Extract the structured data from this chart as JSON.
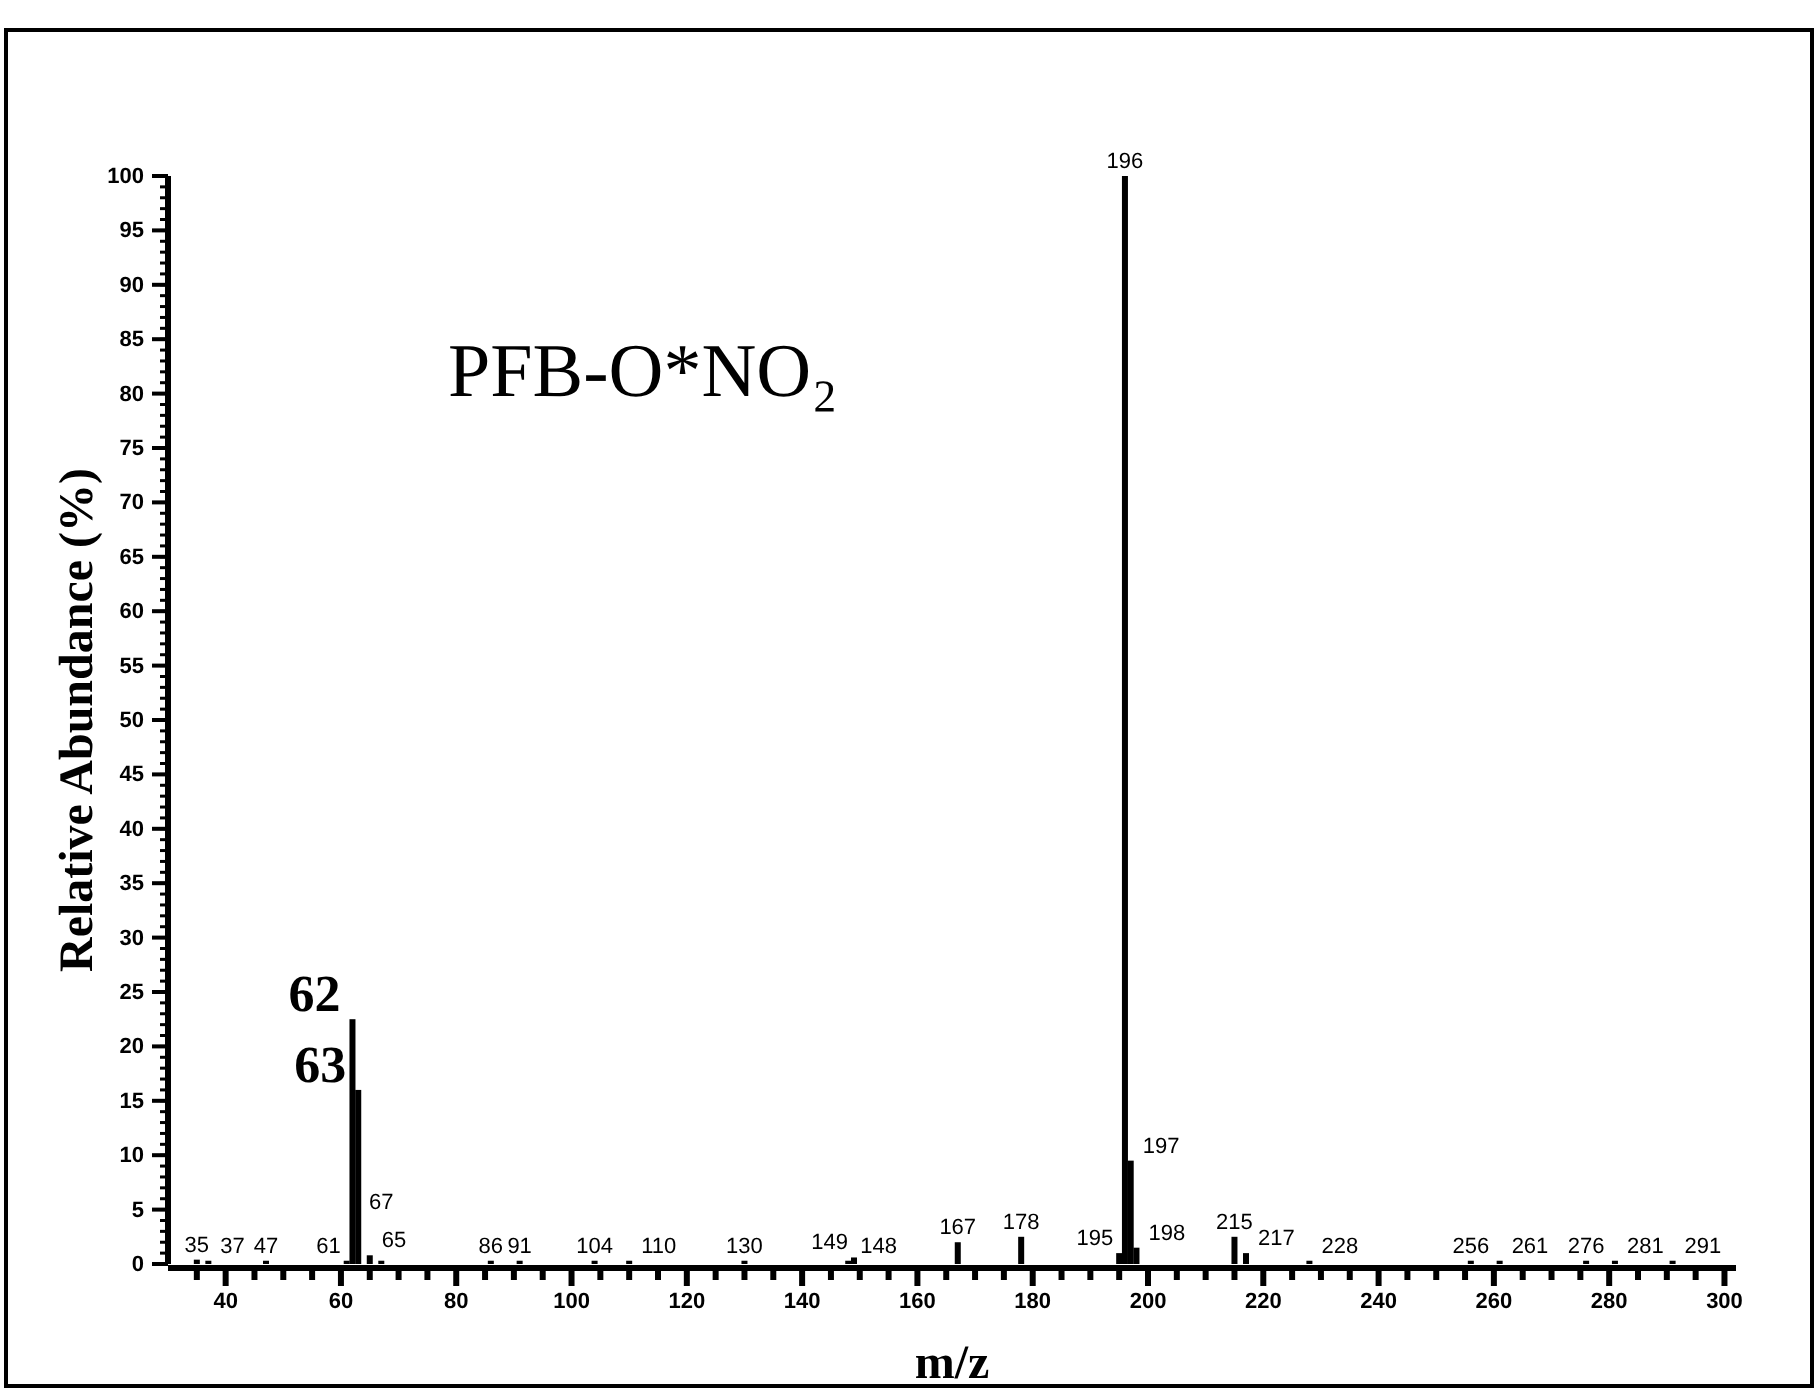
{
  "chart_data": {
    "type": "bar",
    "title": "PFB-O*NO₂",
    "xlabel": "m/z",
    "ylabel": "Relative Abundance (%)",
    "x": [
      35,
      37,
      47,
      61,
      62,
      63,
      65,
      67,
      86,
      91,
      104,
      110,
      130,
      148,
      149,
      167,
      178,
      195,
      196,
      197,
      198,
      215,
      217,
      228,
      256,
      261,
      276,
      281,
      291
    ],
    "values": [
      0.4,
      0.3,
      0.3,
      0.3,
      22.5,
      16,
      0.8,
      0.3,
      0.3,
      0.3,
      0.3,
      0.3,
      0.3,
      0.3,
      0.6,
      2,
      2.5,
      1,
      100,
      9.5,
      1.5,
      2.5,
      1,
      0.3,
      0.3,
      0.3,
      0.3,
      0.3,
      0.3
    ],
    "color": "#000000",
    "annotations": [
      {
        "text": "35",
        "x": 35,
        "y": 0.4
      },
      {
        "text": "37",
        "x": 37,
        "y": 0.3
      },
      {
        "text": "47",
        "x": 47,
        "y": 0.3
      },
      {
        "text": "61",
        "x": 61,
        "y": 0.3
      },
      {
        "text": "62",
        "x": 62,
        "y": 22.5
      },
      {
        "text": "63",
        "x": 63,
        "y": 16
      },
      {
        "text": "65",
        "x": 65,
        "y": 0.8
      },
      {
        "text": "67",
        "x": 67,
        "y": 0.3
      },
      {
        "text": "86",
        "x": 86,
        "y": 0.3
      },
      {
        "text": "91",
        "x": 91,
        "y": 0.3
      },
      {
        "text": "104",
        "x": 104,
        "y": 0.3
      },
      {
        "text": "110",
        "x": 110,
        "y": 0.3
      },
      {
        "text": "130",
        "x": 130,
        "y": 0.3
      },
      {
        "text": "148",
        "x": 148,
        "y": 0.3
      },
      {
        "text": "149",
        "x": 149,
        "y": 0.6
      },
      {
        "text": "167",
        "x": 167,
        "y": 2
      },
      {
        "text": "178",
        "x": 178,
        "y": 2.5
      },
      {
        "text": "195",
        "x": 195,
        "y": 1
      },
      {
        "text": "196",
        "x": 196,
        "y": 100
      },
      {
        "text": "197",
        "x": 197,
        "y": 9.5
      },
      {
        "text": "198",
        "x": 198,
        "y": 1.5
      },
      {
        "text": "215",
        "x": 215,
        "y": 2.5
      },
      {
        "text": "217",
        "x": 217,
        "y": 1
      },
      {
        "text": "228",
        "x": 228,
        "y": 0.3
      },
      {
        "text": "256",
        "x": 256,
        "y": 0.3
      },
      {
        "text": "261",
        "x": 261,
        "y": 0.3
      },
      {
        "text": "276",
        "x": 276,
        "y": 0.3
      },
      {
        "text": "281",
        "x": 281,
        "y": 0.3
      },
      {
        "text": "291",
        "x": 291,
        "y": 0.3
      }
    ],
    "xlim": [
      30,
      302
    ],
    "xticks": [
      {
        "value": 35,
        "label": null
      },
      40,
      {
        "value": 45,
        "label": null
      },
      {
        "value": 50,
        "label": null
      },
      {
        "value": 55,
        "label": null
      },
      60,
      {
        "value": 65,
        "label": null
      },
      {
        "value": 70,
        "label": null
      },
      {
        "value": 75,
        "label": null
      },
      80,
      {
        "value": 85,
        "label": null
      },
      {
        "value": 90,
        "label": null
      },
      {
        "value": 95,
        "label": null
      },
      100,
      {
        "value": 105,
        "label": null
      },
      {
        "value": 110,
        "label": null
      },
      {
        "value": 115,
        "label": null
      },
      120,
      {
        "value": 125,
        "label": null
      },
      {
        "value": 130,
        "label": null
      },
      {
        "value": 135,
        "label": null
      },
      140,
      {
        "value": 145,
        "label": null
      },
      {
        "value": 150,
        "label": null
      },
      {
        "value": 155,
        "label": null
      },
      160,
      {
        "value": 165,
        "label": null
      },
      {
        "value": 170,
        "label": null
      },
      {
        "value": 175,
        "label": null
      },
      180,
      {
        "value": 185,
        "label": null
      },
      {
        "value": 190,
        "label": null
      },
      {
        "value": 195,
        "label": null
      },
      200,
      {
        "value": 205,
        "label": null
      },
      {
        "value": 210,
        "label": null
      },
      {
        "value": 215,
        "label": null
      },
      220,
      {
        "value": 225,
        "label": null
      },
      {
        "value": 230,
        "label": null
      },
      {
        "value": 235,
        "label": null
      },
      240,
      {
        "value": 245,
        "label": null
      },
      {
        "value": 250,
        "label": null
      },
      {
        "value": 255,
        "label": null
      },
      260,
      {
        "value": 265,
        "label": null
      },
      {
        "value": 270,
        "label": null
      },
      {
        "value": 275,
        "label": null
      },
      280,
      {
        "value": 285,
        "label": null
      },
      {
        "value": 290,
        "label": null
      },
      {
        "value": 295,
        "label": null
      },
      300
    ],
    "ylim": [
      0,
      100
    ],
    "yticks": [
      0,
      5,
      10,
      15,
      20,
      25,
      30,
      35,
      40,
      45,
      50,
      55,
      60,
      65,
      70,
      75,
      80,
      85,
      90,
      95,
      100
    ],
    "grid": false
  }
}
